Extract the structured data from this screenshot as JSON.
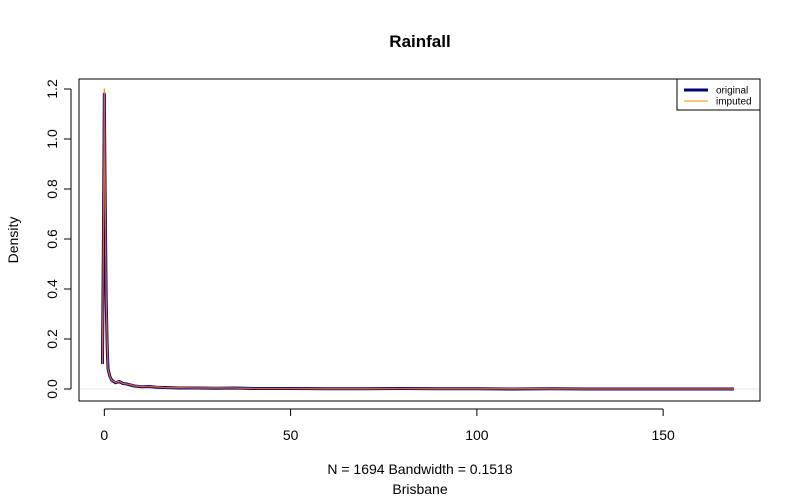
{
  "chart_data": {
    "type": "line",
    "title": "Rainfall",
    "xlabel_line1": "N = 1694   Bandwidth = 0.1518",
    "xlabel_line2": "Brisbane",
    "ylabel": "Density",
    "xlim": [
      -6.8,
      176
    ],
    "ylim": [
      -0.048,
      1.24
    ],
    "x_ticks": [
      0,
      50,
      100,
      150
    ],
    "y_ticks": [
      0.0,
      0.2,
      0.4,
      0.6,
      0.8,
      1.0,
      1.2
    ],
    "y_tick_labels": [
      "0.0",
      "0.2",
      "0.4",
      "0.6",
      "0.8",
      "1.0",
      "1.2"
    ],
    "legend": {
      "position": "top-right",
      "entries": [
        "original",
        "imputed"
      ]
    },
    "colors": {
      "original": "#000080",
      "imputed": "#ff8c00",
      "overlay": "#cc4444"
    },
    "series": [
      {
        "name": "original",
        "x": [
          -0.5,
          -0.2,
          0.0,
          0.2,
          0.5,
          0.8,
          1.0,
          1.5,
          2.0,
          3.0,
          4.0,
          5.0,
          6.0,
          7.0,
          8.0,
          10.0,
          12.0,
          14.0,
          16.0,
          18.0,
          20.0,
          25.0,
          30.0,
          35.0,
          40.0,
          50.0,
          60.0,
          70.0,
          80.0,
          90.0,
          100.0,
          110.0,
          120.0,
          130.0,
          140.0,
          150.0,
          160.0,
          169.0
        ],
        "y": [
          0.1,
          0.7,
          1.18,
          0.8,
          0.35,
          0.15,
          0.08,
          0.05,
          0.035,
          0.025,
          0.03,
          0.022,
          0.02,
          0.016,
          0.012,
          0.009,
          0.01,
          0.007,
          0.006,
          0.005,
          0.004,
          0.004,
          0.003,
          0.004,
          0.002,
          0.002,
          0.001,
          0.001,
          0.002,
          0.001,
          0.001,
          0.0,
          0.001,
          0.0,
          0.0,
          0.0,
          0.0,
          0.0
        ]
      },
      {
        "name": "imputed",
        "x": [
          -0.5,
          -0.2,
          0.0,
          0.2,
          0.5,
          0.8,
          1.0,
          1.5,
          2.0,
          3.0,
          4.0,
          5.0,
          6.0,
          7.0,
          8.0,
          10.0,
          12.0,
          14.0,
          16.0,
          18.0,
          20.0,
          25.0,
          30.0,
          35.0,
          40.0,
          50.0,
          60.0,
          70.0,
          80.0,
          90.0,
          100.0,
          110.0,
          120.0,
          130.0,
          140.0,
          150.0,
          160.0,
          169.0
        ],
        "y": [
          0.1,
          0.72,
          1.2,
          0.82,
          0.36,
          0.16,
          0.08,
          0.05,
          0.035,
          0.026,
          0.03,
          0.022,
          0.02,
          0.017,
          0.012,
          0.01,
          0.01,
          0.008,
          0.006,
          0.005,
          0.005,
          0.004,
          0.004,
          0.004,
          0.002,
          0.002,
          0.001,
          0.001,
          0.002,
          0.001,
          0.001,
          0.001,
          0.001,
          0.0,
          0.0,
          0.0,
          0.0,
          0.0
        ]
      }
    ]
  }
}
